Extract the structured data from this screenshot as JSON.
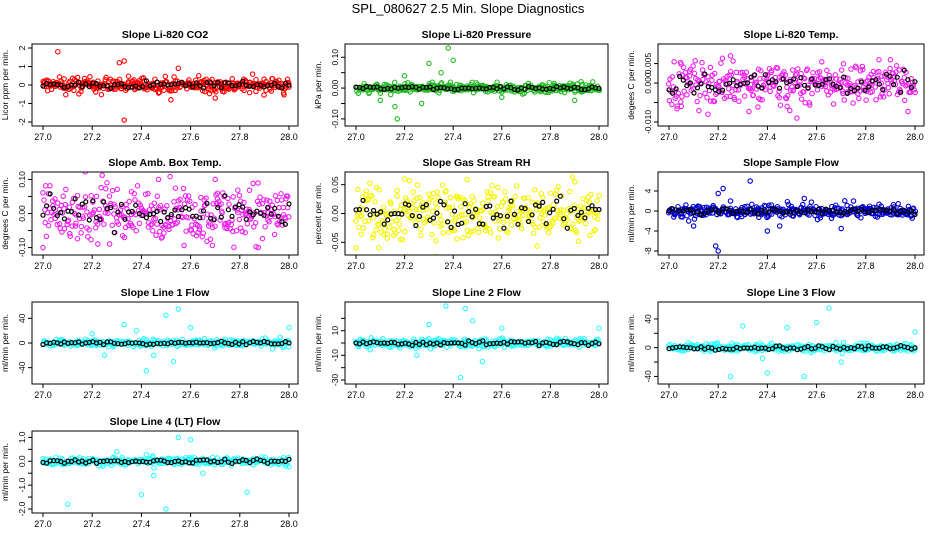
{
  "page": {
    "title": "SPL_080627  2.5 Min. Slope Diagnostics"
  },
  "colors": {
    "black": "#000000",
    "red": "#ff0000",
    "green": "#22bb22",
    "magenta": "#ee22ee",
    "yellow": "#f5f500",
    "blue": "#0000cc",
    "cyan": "#33ffff"
  },
  "chart_data": [
    {
      "type": "scatter",
      "title": "Slope Li-820 CO2",
      "ylabel": "Licor ppm per min.",
      "xlim": [
        27.0,
        28.0
      ],
      "ylim": [
        -2,
        2
      ],
      "xticks": [
        27.0,
        27.2,
        27.4,
        27.6,
        27.8,
        28.0
      ],
      "yticks": [
        -2,
        -1,
        0,
        1,
        2
      ],
      "ytick_labels": [
        "-2",
        "-1",
        "0",
        "1",
        "2"
      ],
      "color": "#ff0000",
      "spread": 0.22,
      "outliers": [
        [
          27.06,
          1.8
        ],
        [
          27.31,
          1.2
        ],
        [
          27.33,
          1.3
        ],
        [
          27.33,
          -1.9
        ],
        [
          27.52,
          -0.8
        ],
        [
          27.7,
          -0.7
        ],
        [
          27.55,
          0.9
        ]
      ]
    },
    {
      "type": "scatter",
      "title": "Slope Li-820 Pressure",
      "ylabel": "kPa per min.",
      "xlim": [
        27.0,
        28.0
      ],
      "ylim": [
        -0.11,
        0.13
      ],
      "xticks": [
        27.0,
        27.2,
        27.4,
        27.6,
        27.8,
        28.0
      ],
      "yticks": [
        -0.1,
        -0.05,
        0.0,
        0.05,
        0.1
      ],
      "ytick_labels": [
        "-0.10",
        "",
        "0.00",
        "",
        "0.10"
      ],
      "color": "#22bb22",
      "spread": 0.008,
      "outliers": [
        [
          27.17,
          -0.1
        ],
        [
          27.16,
          -0.06
        ],
        [
          27.1,
          -0.04
        ],
        [
          27.3,
          0.08
        ],
        [
          27.38,
          0.13
        ],
        [
          27.2,
          0.04
        ],
        [
          27.4,
          0.09
        ],
        [
          27.27,
          -0.05
        ],
        [
          27.9,
          -0.04
        ],
        [
          27.35,
          0.05
        ],
        [
          27.6,
          -0.03
        ]
      ]
    },
    {
      "type": "scatter",
      "title": "Slope Li-820 Temp.",
      "ylabel": "degees C per min.",
      "xlim": [
        27.0,
        28.0
      ],
      "ylim": [
        -0.01,
        0.009
      ],
      "xticks": [
        27.0,
        27.2,
        27.4,
        27.6,
        27.8,
        28.0
      ],
      "yticks": [
        -0.01,
        -0.005,
        0.0,
        0.005
      ],
      "ytick_labels": [
        "-0.010",
        "",
        "0.000",
        "0.005"
      ],
      "color": "#ee22ee",
      "spread": 0.003,
      "outliers": [
        [
          27.52,
          -0.009
        ],
        [
          27.05,
          -0.006
        ],
        [
          27.25,
          0.007
        ],
        [
          27.48,
          -0.006
        ],
        [
          27.9,
          0.006
        ]
      ]
    },
    {
      "type": "scatter",
      "title": "Slope Amb. Box Temp.",
      "ylabel": "degrees C per min.",
      "xlim": [
        27.0,
        28.0
      ],
      "ylim": [
        -0.11,
        0.11
      ],
      "xticks": [
        27.0,
        27.2,
        27.4,
        27.6,
        27.8,
        28.0
      ],
      "yticks": [
        -0.1,
        -0.05,
        0.0,
        0.05,
        0.1
      ],
      "ytick_labels": [
        "-0.10",
        "",
        "0.00",
        "",
        "0.10"
      ],
      "color": "#ee22ee",
      "spread": 0.045,
      "outliers": [
        [
          27.47,
          0.1
        ],
        [
          27.0,
          -0.1
        ],
        [
          27.7,
          0.1
        ],
        [
          27.26,
          0.09
        ]
      ]
    },
    {
      "type": "scatter",
      "title": "Slope Gas Stream RH",
      "ylabel": "percent per min.",
      "xlim": [
        27.0,
        28.0
      ],
      "ylim": [
        -0.065,
        0.065
      ],
      "xticks": [
        27.0,
        27.2,
        27.4,
        27.6,
        27.8,
        28.0
      ],
      "yticks": [
        -0.05,
        0.0,
        0.05
      ],
      "ytick_labels": [
        "-0.05",
        "0.00",
        "0.05"
      ],
      "color": "#f5f500",
      "spread": 0.028,
      "outliers": [
        [
          27.0,
          -0.06
        ],
        [
          27.2,
          0.06
        ],
        [
          27.9,
          0.055
        ]
      ]
    },
    {
      "type": "scatter",
      "title": "Slope Sample Flow",
      "ylabel": "ml/min per min.",
      "xlim": [
        27.0,
        28.0
      ],
      "ylim": [
        -8,
        7
      ],
      "xticks": [
        27.0,
        27.2,
        27.4,
        27.6,
        27.8,
        28.0
      ],
      "yticks": [
        -8,
        -4,
        0,
        4
      ],
      "ytick_labels": [
        "-8",
        "-4",
        "0",
        "4"
      ],
      "color": "#0000cc",
      "spread": 0.7,
      "outliers": [
        [
          27.33,
          6
        ],
        [
          27.2,
          3.5
        ],
        [
          27.22,
          4.5
        ],
        [
          27.19,
          -7
        ],
        [
          27.2,
          -8
        ],
        [
          27.08,
          -2
        ],
        [
          27.1,
          -3
        ],
        [
          27.25,
          2
        ],
        [
          27.4,
          -4
        ],
        [
          27.45,
          -3
        ],
        [
          27.55,
          2.5
        ],
        [
          27.7,
          -3.5
        ],
        [
          27.75,
          2
        ]
      ]
    },
    {
      "type": "scatter",
      "title": "Slope Line 1 Flow",
      "ylabel": "ml/min per min.",
      "xlim": [
        27.0,
        28.0
      ],
      "ylim": [
        -60,
        60
      ],
      "xticks": [
        27.0,
        27.2,
        27.4,
        27.6,
        27.8,
        28.0
      ],
      "yticks": [
        -40,
        0,
        40
      ],
      "ytick_labels": [
        "-40",
        "0",
        "40"
      ],
      "color": "#33ffff",
      "spread": 3,
      "outliers": [
        [
          27.42,
          -45
        ],
        [
          27.5,
          45
        ],
        [
          27.55,
          55
        ],
        [
          27.33,
          30
        ],
        [
          27.6,
          25
        ],
        [
          27.25,
          -20
        ],
        [
          27.2,
          15
        ],
        [
          27.45,
          -20
        ],
        [
          27.53,
          -30
        ],
        [
          27.38,
          20
        ],
        [
          28.0,
          25
        ]
      ]
    },
    {
      "type": "scatter",
      "title": "Slope Line 2 Flow",
      "ylabel": "ml/min per min.",
      "xlim": [
        27.0,
        28.0
      ],
      "ylim": [
        -30,
        30
      ],
      "xticks": [
        27.0,
        27.2,
        27.4,
        27.6,
        27.8,
        28.0
      ],
      "yticks": [
        -30,
        -20,
        -10,
        0,
        10,
        20
      ],
      "ytick_labels": [
        "-30",
        "",
        "-10",
        "",
        "10",
        ""
      ],
      "color": "#33ffff",
      "spread": 2,
      "outliers": [
        [
          27.37,
          30
        ],
        [
          27.45,
          28
        ],
        [
          27.43,
          -28
        ],
        [
          27.3,
          15
        ],
        [
          27.48,
          18
        ],
        [
          27.52,
          -15
        ],
        [
          27.6,
          12
        ],
        [
          27.25,
          -10
        ],
        [
          28.0,
          12
        ]
      ]
    },
    {
      "type": "scatter",
      "title": "Slope Line 3 Flow",
      "ylabel": "ml/min per min.",
      "xlim": [
        27.0,
        28.0
      ],
      "ylim": [
        -45,
        58
      ],
      "xticks": [
        27.0,
        27.2,
        27.4,
        27.6,
        27.8,
        28.0
      ],
      "yticks": [
        -40,
        -20,
        0,
        20,
        40
      ],
      "ytick_labels": [
        "-40",
        "",
        "0",
        "",
        "40"
      ],
      "color": "#33ffff",
      "spread": 3,
      "outliers": [
        [
          27.65,
          55
        ],
        [
          27.55,
          -40
        ],
        [
          27.25,
          -40
        ],
        [
          27.3,
          30
        ],
        [
          27.6,
          35
        ],
        [
          27.48,
          28
        ],
        [
          27.7,
          -20
        ],
        [
          27.38,
          -15
        ],
        [
          28.0,
          22
        ],
        [
          27.4,
          -35
        ]
      ]
    },
    {
      "type": "scatter",
      "title": "Slope Line 4 (LT) Flow",
      "ylabel": "ml/min per min.",
      "xlim": [
        27.0,
        28.0
      ],
      "ylim": [
        -2,
        1.1
      ],
      "xticks": [
        27.0,
        27.2,
        27.4,
        27.6,
        27.8,
        28.0
      ],
      "yticks": [
        -2,
        -1.5,
        -1,
        -0.5,
        0,
        0.5,
        1
      ],
      "ytick_labels": [
        "-2.0",
        "",
        "-1.0",
        "",
        "0.0",
        "",
        "1.0"
      ],
      "color": "#33ffff",
      "spread": 0.09,
      "outliers": [
        [
          27.5,
          -2.0
        ],
        [
          27.1,
          -1.8
        ],
        [
          27.6,
          0.9
        ],
        [
          27.55,
          1.0
        ],
        [
          27.4,
          -1.4
        ],
        [
          27.83,
          -1.3
        ],
        [
          27.3,
          0.4
        ],
        [
          27.45,
          -0.6
        ],
        [
          27.65,
          -0.5
        ]
      ]
    }
  ]
}
